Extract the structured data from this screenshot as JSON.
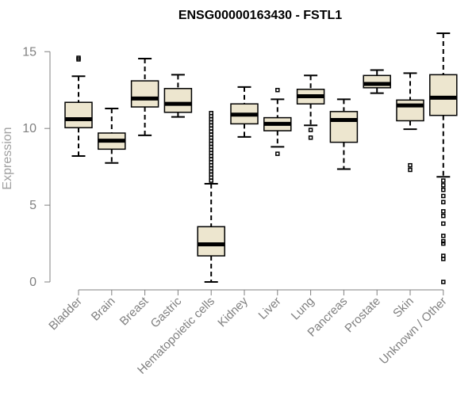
{
  "chart_data": {
    "type": "box",
    "title": "ENSG00000163430 - FSTL1",
    "xlabel": "",
    "ylabel": "Expression",
    "ylim": [
      0,
      16.2
    ],
    "yticks": [
      0,
      5,
      10,
      15
    ],
    "grid": false,
    "legend": "none",
    "colors": {
      "box_fill": "#ede6cf",
      "line": "#000000",
      "axis": "#808080"
    },
    "categories": [
      "Bladder",
      "Brain",
      "Breast",
      "Gastric",
      "Hematopoietic cells",
      "Kidney",
      "Liver",
      "Lung",
      "Pancreas",
      "Prostate",
      "Skin",
      "Unknown / Other"
    ],
    "boxes": [
      {
        "name": "Bladder",
        "whisker_low": 8.2,
        "q1": 10.05,
        "median": 10.6,
        "q3": 11.7,
        "whisker_high": 13.4,
        "outliers": [
          14.5,
          14.6
        ]
      },
      {
        "name": "Brain",
        "whisker_low": 7.75,
        "q1": 8.65,
        "median": 9.2,
        "q3": 9.7,
        "whisker_high": 11.3,
        "outliers": []
      },
      {
        "name": "Breast",
        "whisker_low": 9.55,
        "q1": 11.4,
        "median": 11.95,
        "q3": 13.1,
        "whisker_high": 14.55,
        "outliers": []
      },
      {
        "name": "Gastric",
        "whisker_low": 10.75,
        "q1": 11.05,
        "median": 11.6,
        "q3": 12.6,
        "whisker_high": 13.5,
        "outliers": []
      },
      {
        "name": "Hematopoietic cells",
        "whisker_low": 0.0,
        "q1": 1.7,
        "median": 2.45,
        "q3": 3.6,
        "whisker_high": 6.4,
        "outliers": [
          6.6,
          6.8,
          7.0,
          7.2,
          7.4,
          7.6,
          7.8,
          8.0,
          8.2,
          8.4,
          8.6,
          8.8,
          9.0,
          9.2,
          9.4,
          9.6,
          9.8,
          10.0,
          10.2,
          10.4,
          10.6,
          10.8,
          11.0
        ]
      },
      {
        "name": "Kidney",
        "whisker_low": 9.45,
        "q1": 10.3,
        "median": 10.9,
        "q3": 11.6,
        "whisker_high": 12.7,
        "outliers": []
      },
      {
        "name": "Liver",
        "whisker_low": 8.8,
        "q1": 9.85,
        "median": 10.3,
        "q3": 10.7,
        "whisker_high": 11.9,
        "outliers": [
          8.35,
          12.5
        ]
      },
      {
        "name": "Lung",
        "whisker_low": 10.2,
        "q1": 11.6,
        "median": 12.1,
        "q3": 12.55,
        "whisker_high": 13.45,
        "outliers": [
          9.4,
          9.9
        ]
      },
      {
        "name": "Pancreas",
        "whisker_low": 7.35,
        "q1": 9.1,
        "median": 10.55,
        "q3": 11.1,
        "whisker_high": 11.9,
        "outliers": []
      },
      {
        "name": "Prostate",
        "whisker_low": 12.3,
        "q1": 12.65,
        "median": 12.9,
        "q3": 13.45,
        "whisker_high": 13.8,
        "outliers": []
      },
      {
        "name": "Skin",
        "whisker_low": 9.95,
        "q1": 10.5,
        "median": 11.5,
        "q3": 11.85,
        "whisker_high": 13.6,
        "outliers": [
          7.3,
          7.6
        ]
      },
      {
        "name": "Unknown / Other",
        "whisker_low": 6.85,
        "q1": 10.85,
        "median": 12.0,
        "q3": 13.5,
        "whisker_high": 16.2,
        "outliers": [
          0.0,
          1.5,
          1.7,
          2.5,
          2.65,
          3.0,
          3.8,
          4.3,
          4.6,
          5.2,
          5.6,
          6.0,
          6.3,
          6.6
        ]
      }
    ]
  }
}
